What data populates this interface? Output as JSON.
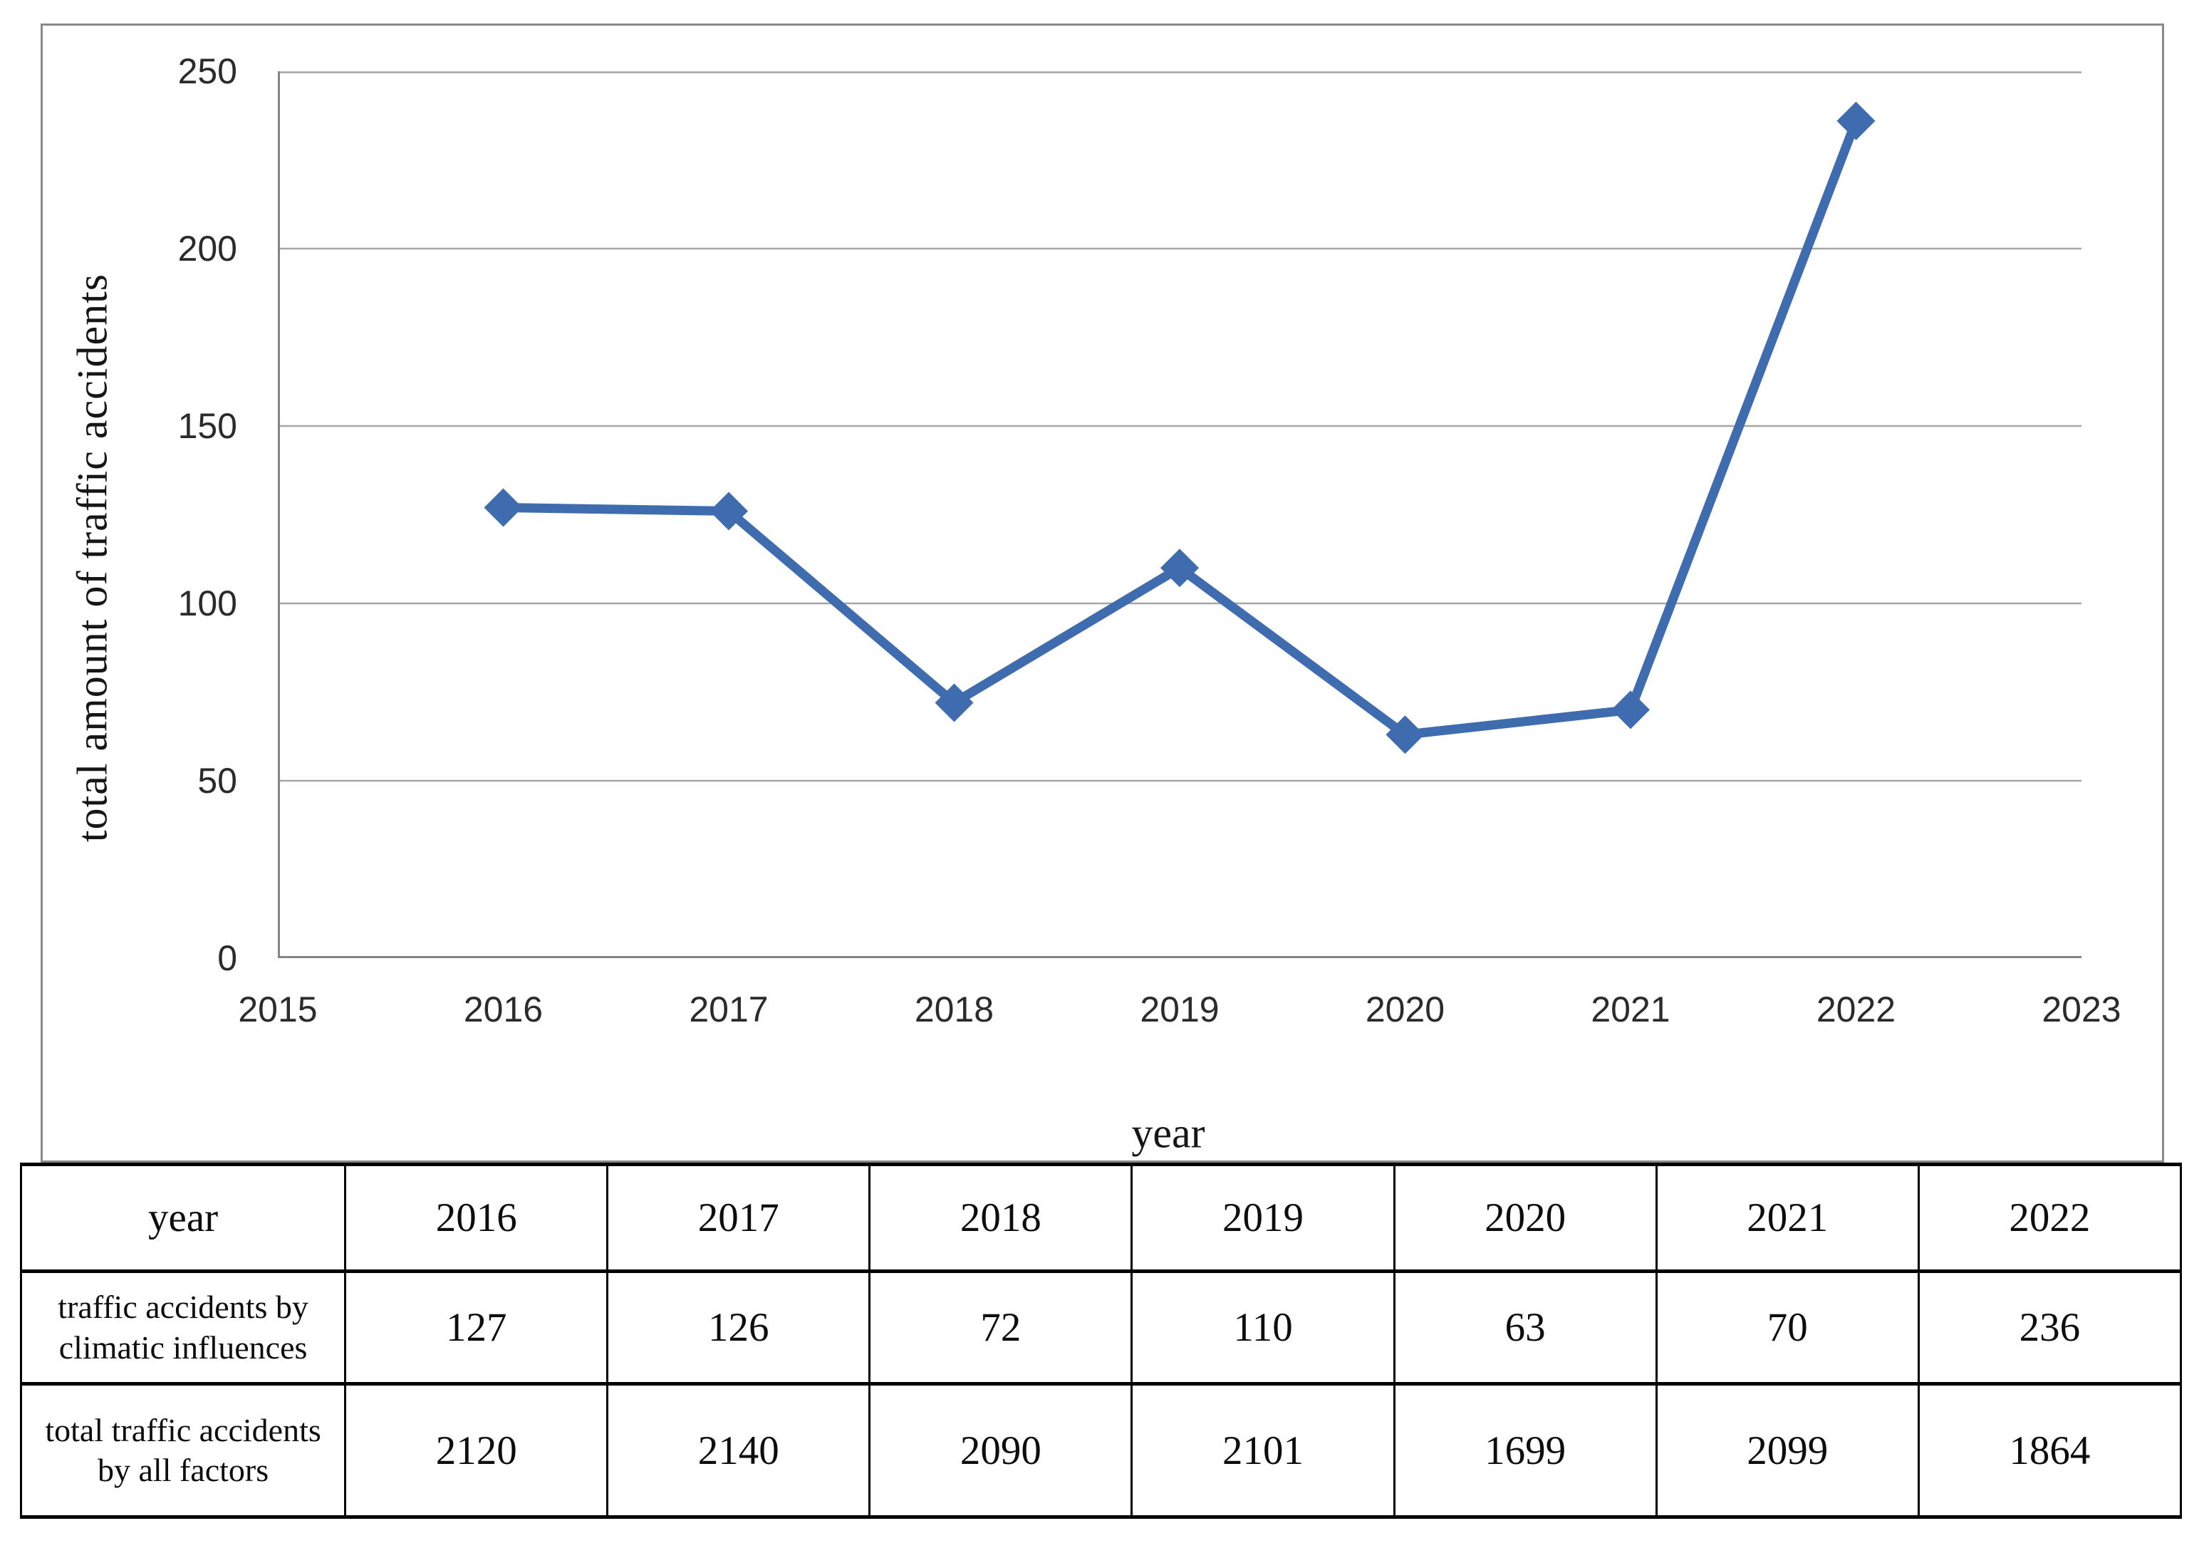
{
  "chart_data": {
    "type": "line",
    "title": "",
    "xlabel": "year",
    "ylabel": "total amount of traffic accidents",
    "x": [
      2016,
      2017,
      2018,
      2019,
      2020,
      2021,
      2022
    ],
    "series": [
      {
        "name": "traffic accidents by climatic influences",
        "values": [
          127,
          126,
          72,
          110,
          63,
          70,
          236
        ]
      }
    ],
    "x_ticks": [
      2015,
      2016,
      2017,
      2018,
      2019,
      2020,
      2021,
      2022,
      2023
    ],
    "y_ticks": [
      0,
      50,
      100,
      150,
      200,
      250
    ],
    "xlim": [
      2015,
      2023
    ],
    "ylim": [
      0,
      250
    ],
    "grid": "horizontal",
    "legend_position": "none",
    "line_color": "#3f6cae",
    "marker": "diamond",
    "gridline_color": "#a6a6a6",
    "axis_line_color": "#858585"
  },
  "table": {
    "header": {
      "label": "year",
      "years": [
        "2016",
        "2017",
        "2018",
        "2019",
        "2020",
        "2021",
        "2022"
      ]
    },
    "rows": [
      {
        "label": "traffic accidents by climatic influences",
        "values": [
          "127",
          "126",
          "72",
          "110",
          "63",
          "70",
          "236"
        ]
      },
      {
        "label": "total traffic accidents by all factors",
        "values": [
          "2120",
          "2140",
          "2090",
          "2101",
          "1699",
          "2099",
          "1864"
        ]
      }
    ]
  }
}
